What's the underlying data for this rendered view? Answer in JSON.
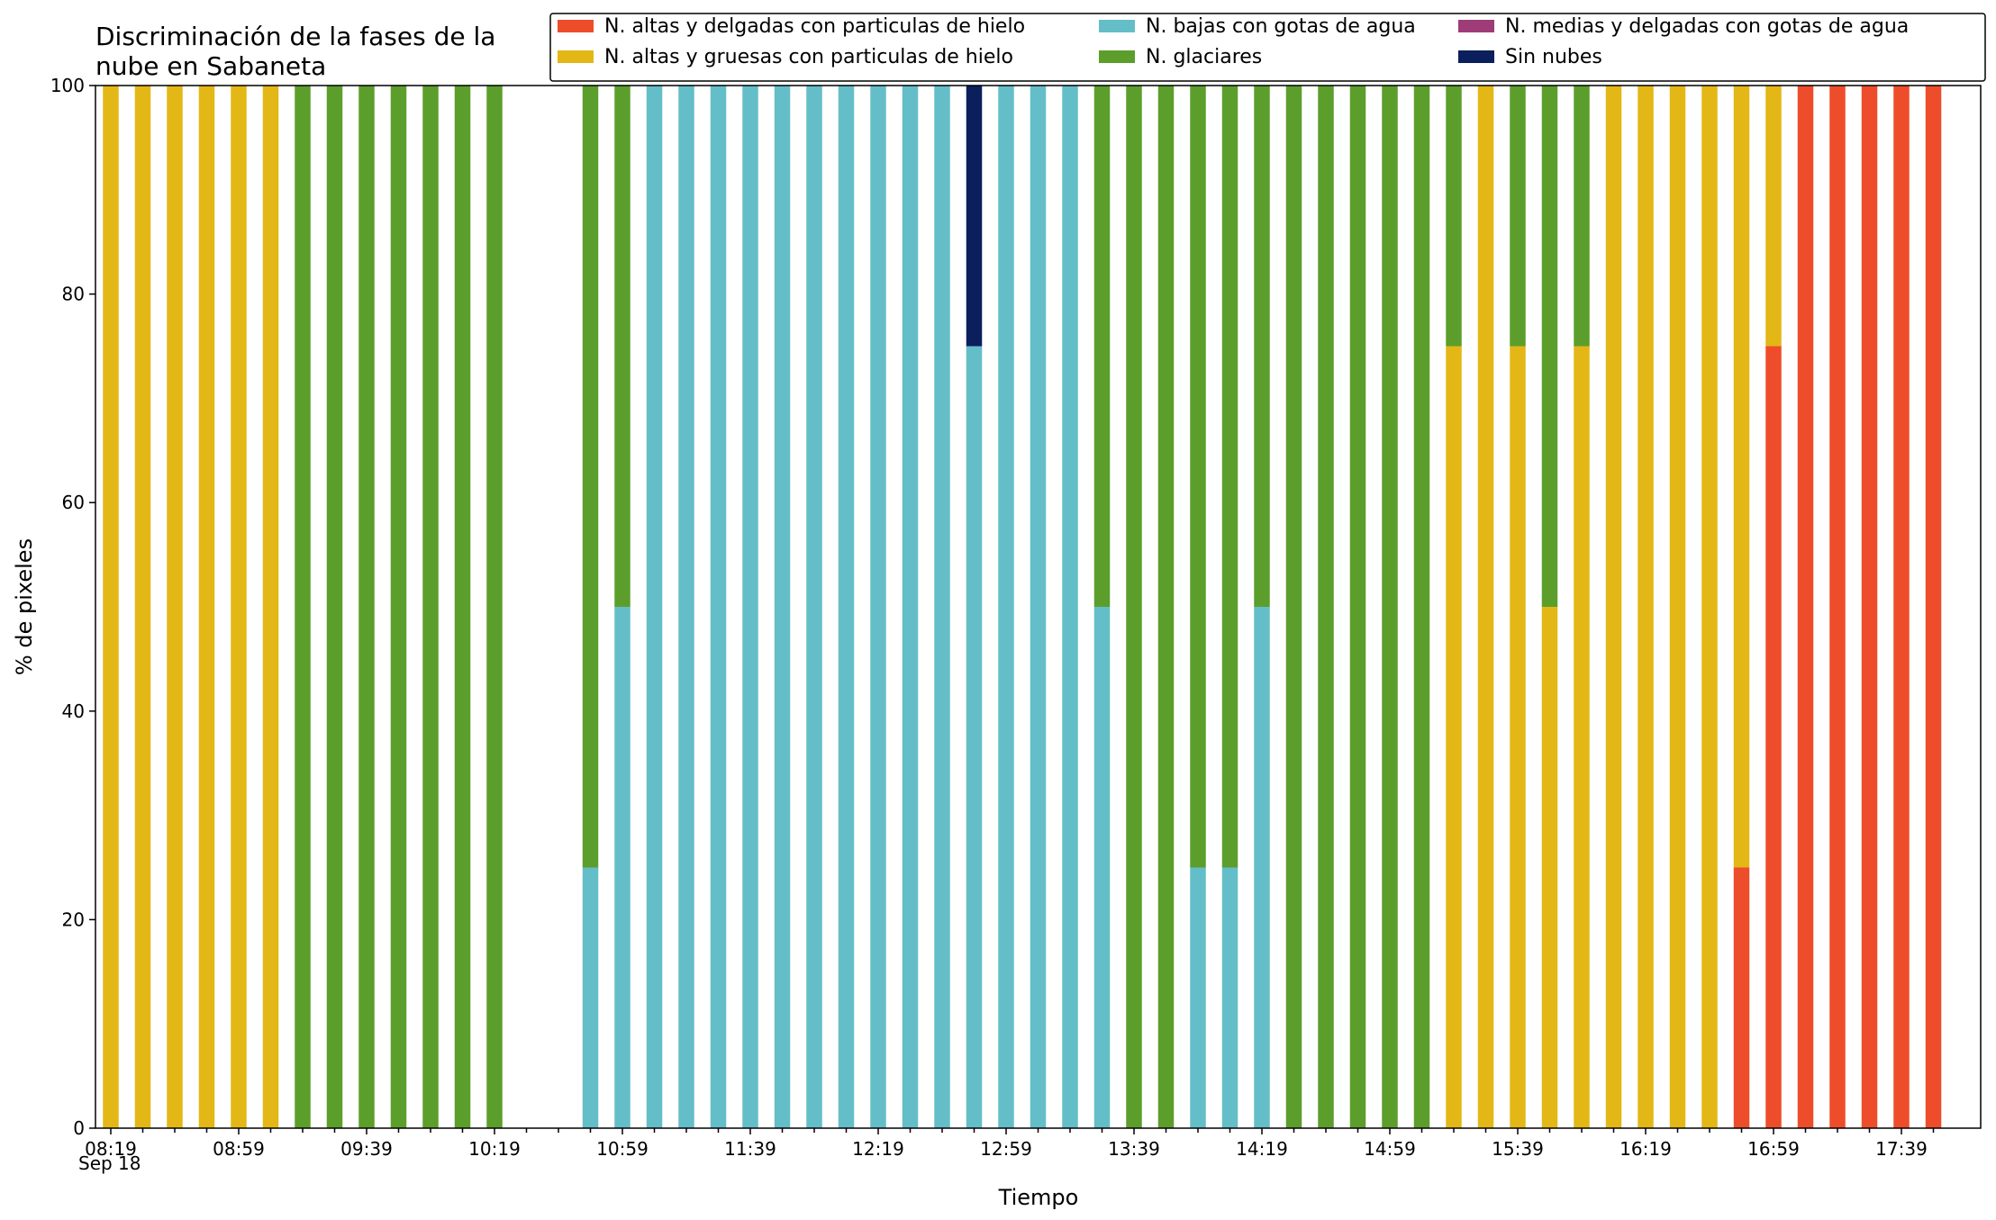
{
  "chart_data": {
    "type": "bar",
    "stacked": true,
    "title_lines": [
      "Discriminación de la fases de la",
      "nube en Sabaneta"
    ],
    "xlabel": "Tiempo",
    "ylabel": "% de pixeles",
    "ylim": [
      0,
      100
    ],
    "yticks": [
      "0",
      "20",
      "40",
      "60",
      "80",
      "100"
    ],
    "xtick_labels": [
      "08:19",
      "08:59",
      "09:39",
      "10:19",
      "10:59",
      "11:39",
      "12:19",
      "12:59",
      "13:39",
      "14:19",
      "14:59",
      "15:39",
      "16:19",
      "16:59",
      "17:39"
    ],
    "xtick_date": "Sep 18",
    "grid": false,
    "legend_position": "top-right",
    "legend": [
      {
        "name": "N. altas y delgadas con particulas de hielo",
        "color": "#ee4d2b"
      },
      {
        "name": "N. altas y gruesas con particulas de hielo",
        "color": "#e3b716"
      },
      {
        "name": "N. bajas con gotas de agua",
        "color": "#64bec8"
      },
      {
        "name": "N. glaciares",
        "color": "#5c9e2c"
      },
      {
        "name": "N. medias y delgadas con gotas de agua",
        "color": "#9e3c77"
      },
      {
        "name": "Sin nubes",
        "color": "#0b1f5c"
      }
    ],
    "categories": [
      "08:19",
      "08:29",
      "08:39",
      "08:49",
      "08:59",
      "09:09",
      "09:19",
      "09:29",
      "09:39",
      "09:49",
      "09:59",
      "10:09",
      "10:19",
      "10:29",
      "10:39",
      "10:49",
      "10:59",
      "11:09",
      "11:19",
      "11:29",
      "11:39",
      "11:49",
      "11:59",
      "12:09",
      "12:19",
      "12:29",
      "12:39",
      "12:49",
      "12:59",
      "13:09",
      "13:19",
      "13:29",
      "13:39",
      "13:49",
      "13:59",
      "14:09",
      "14:19",
      "14:29",
      "14:39",
      "14:49",
      "14:59",
      "15:09",
      "15:19",
      "15:29",
      "15:39",
      "15:49",
      "15:59",
      "16:09",
      "16:19",
      "16:29",
      "16:39",
      "16:49",
      "16:59",
      "17:09",
      "17:19",
      "17:29",
      "17:39",
      "17:49"
    ],
    "series": [
      {
        "name": "N. altas y delgadas con particulas de hielo",
        "color": "#ee4d2b",
        "values": [
          0,
          0,
          0,
          0,
          0,
          0,
          0,
          0,
          0,
          0,
          0,
          0,
          0,
          0,
          0,
          0,
          0,
          0,
          0,
          0,
          0,
          0,
          0,
          0,
          0,
          0,
          0,
          0,
          0,
          0,
          0,
          0,
          0,
          0,
          0,
          0,
          0,
          0,
          0,
          0,
          0,
          0,
          0,
          0,
          0,
          0,
          0,
          0,
          0,
          0,
          0,
          25,
          75,
          100,
          100,
          100,
          100,
          100
        ]
      },
      {
        "name": "N. altas y gruesas con particulas de hielo",
        "color": "#e3b716",
        "values": [
          100,
          100,
          100,
          100,
          100,
          100,
          0,
          0,
          0,
          0,
          0,
          0,
          0,
          0,
          0,
          0,
          0,
          0,
          0,
          0,
          0,
          0,
          0,
          0,
          0,
          0,
          0,
          0,
          0,
          0,
          0,
          0,
          0,
          0,
          0,
          0,
          0,
          0,
          0,
          0,
          0,
          0,
          75,
          100,
          75,
          50,
          75,
          100,
          100,
          100,
          100,
          75,
          25,
          0,
          0,
          0,
          0,
          0
        ]
      },
      {
        "name": "N. bajas con gotas de agua",
        "color": "#64bec8",
        "values": [
          0,
          0,
          0,
          0,
          0,
          0,
          0,
          0,
          0,
          0,
          0,
          0,
          0,
          0,
          0,
          25,
          50,
          100,
          100,
          100,
          100,
          100,
          100,
          100,
          100,
          100,
          100,
          75,
          100,
          100,
          100,
          50,
          0,
          0,
          25,
          25,
          50,
          0,
          0,
          0,
          0,
          0,
          0,
          0,
          0,
          0,
          0,
          0,
          0,
          0,
          0,
          0,
          0,
          0,
          0,
          0,
          0,
          0
        ]
      },
      {
        "name": "N. glaciares",
        "color": "#5c9e2c",
        "values": [
          0,
          0,
          0,
          0,
          0,
          0,
          100,
          100,
          100,
          100,
          100,
          100,
          100,
          0,
          0,
          75,
          50,
          0,
          0,
          0,
          0,
          0,
          0,
          0,
          0,
          0,
          0,
          0,
          0,
          0,
          0,
          50,
          100,
          100,
          75,
          75,
          50,
          100,
          100,
          100,
          100,
          100,
          25,
          0,
          25,
          50,
          25,
          0,
          0,
          0,
          0,
          0,
          0,
          0,
          0,
          0,
          0,
          0
        ]
      },
      {
        "name": "N. medias y delgadas con gotas de agua",
        "color": "#9e3c77",
        "values": [
          0,
          0,
          0,
          0,
          0,
          0,
          0,
          0,
          0,
          0,
          0,
          0,
          0,
          0,
          0,
          0,
          0,
          0,
          0,
          0,
          0,
          0,
          0,
          0,
          0,
          0,
          0,
          0,
          0,
          0,
          0,
          0,
          0,
          0,
          0,
          0,
          0,
          0,
          0,
          0,
          0,
          0,
          0,
          0,
          0,
          0,
          0,
          0,
          0,
          0,
          0,
          0,
          0,
          0,
          0,
          0,
          0,
          0
        ]
      },
      {
        "name": "Sin nubes",
        "color": "#0b1f5c",
        "values": [
          0,
          0,
          0,
          0,
          0,
          0,
          0,
          0,
          0,
          0,
          0,
          0,
          0,
          0,
          0,
          0,
          0,
          0,
          0,
          0,
          0,
          0,
          0,
          0,
          0,
          0,
          0,
          25,
          0,
          0,
          0,
          0,
          0,
          0,
          0,
          0,
          0,
          0,
          0,
          0,
          0,
          0,
          0,
          0,
          0,
          0,
          0,
          0,
          0,
          0,
          0,
          0,
          0,
          0,
          0,
          0,
          0,
          0
        ]
      }
    ]
  }
}
